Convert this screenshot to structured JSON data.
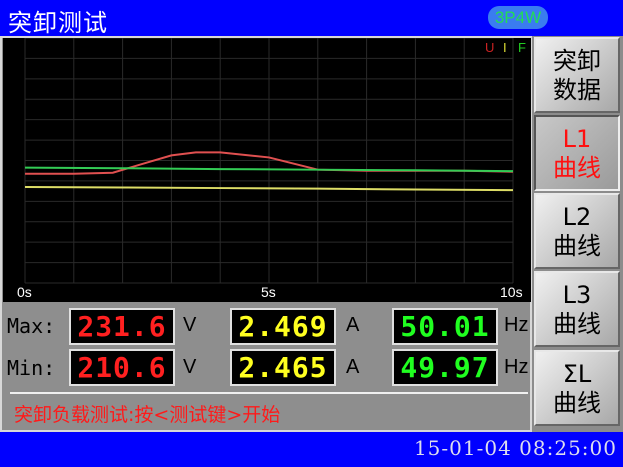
{
  "header": {
    "title": "突卸测试",
    "mode_badge": "3P4W"
  },
  "chart": {
    "legend": [
      {
        "label": "U",
        "color": "#cc2222"
      },
      {
        "label": "I",
        "color": "#dddd33"
      },
      {
        "label": "F",
        "color": "#22cc22"
      }
    ],
    "x_labels": [
      "0s",
      "5s",
      "10s"
    ]
  },
  "chart_data": {
    "type": "line",
    "xlabel": "",
    "ylabel": "",
    "xlim": [
      0,
      10
    ],
    "ylim": [
      0,
      12
    ],
    "grid": true,
    "legend_placement": "top-right",
    "x_ticks": [
      "0s",
      "5s",
      "10s"
    ],
    "series": [
      {
        "name": "U",
        "color": "#e05050",
        "x": [
          0,
          1,
          1.8,
          2.5,
          3,
          3.5,
          4,
          5,
          5.5,
          6,
          7,
          8,
          9,
          10
        ],
        "y": [
          5.35,
          5.35,
          5.4,
          5.9,
          6.25,
          6.4,
          6.4,
          6.15,
          5.85,
          5.55,
          5.5,
          5.5,
          5.5,
          5.45
        ]
      },
      {
        "name": "F",
        "color": "#33cc55",
        "x": [
          0,
          2,
          4,
          6,
          8,
          10
        ],
        "y": [
          5.65,
          5.62,
          5.58,
          5.55,
          5.52,
          5.48
        ]
      },
      {
        "name": "I",
        "color": "#dddd66",
        "x": [
          0,
          2,
          4,
          6,
          8,
          10
        ],
        "y": [
          4.7,
          4.68,
          4.65,
          4.62,
          4.58,
          4.55
        ]
      }
    ]
  },
  "readings": {
    "max": {
      "label": "Max:",
      "voltage": "231.6",
      "current": "2.469",
      "frequency": "50.01"
    },
    "min": {
      "label": "Min:",
      "voltage": "210.6",
      "current": "2.465",
      "frequency": "49.97"
    },
    "units": {
      "voltage": "V",
      "current": "A",
      "frequency": "Hz"
    },
    "colors": {
      "voltage": "#ff2020",
      "current": "#ffff20",
      "frequency": "#20ff20"
    }
  },
  "status": "突卸负载测试:按<测试键>开始",
  "side_buttons": [
    {
      "line1": "突卸",
      "line2": "数据",
      "selected": false
    },
    {
      "line1": "L1",
      "line2": "曲线",
      "selected": true
    },
    {
      "line1": "L2",
      "line2": "曲线",
      "selected": false
    },
    {
      "line1": "L3",
      "line2": "曲线",
      "selected": false
    },
    {
      "line1": "ΣL",
      "line2": "曲线",
      "selected": false
    }
  ],
  "footer": {
    "datetime": "15-01-04 08:25:00"
  }
}
